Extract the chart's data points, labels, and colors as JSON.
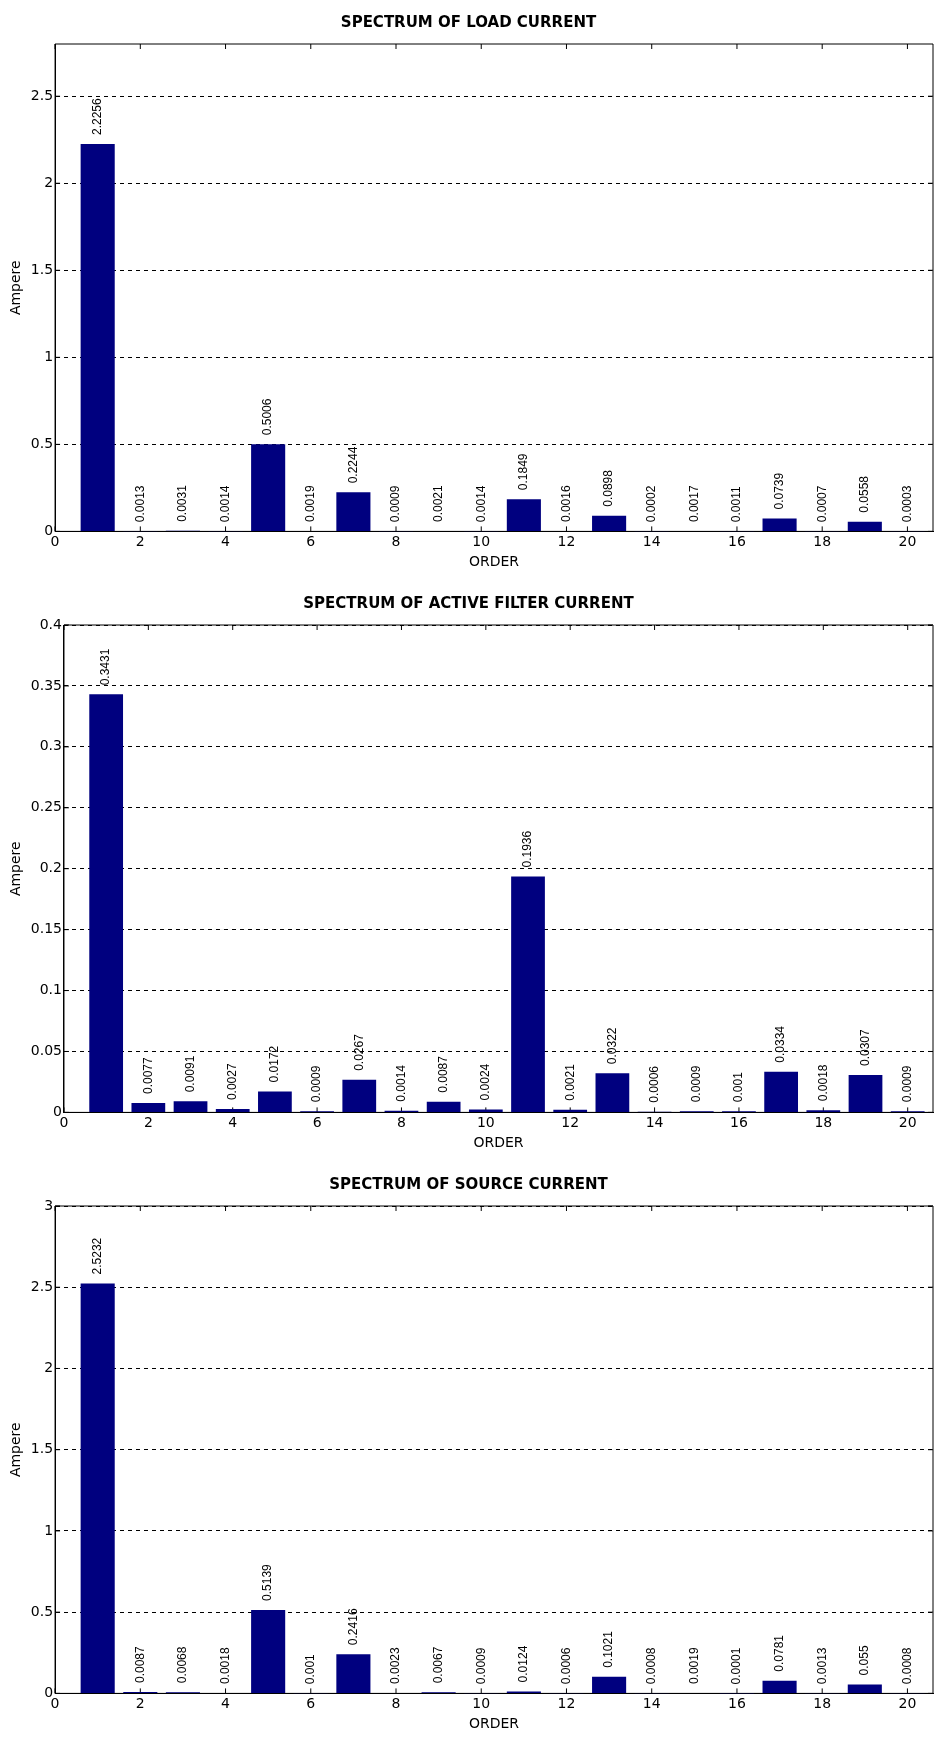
{
  "chart_data": [
    {
      "type": "bar",
      "title": "SPECTRUM OF LOAD CURRENT",
      "xlabel": "ORDER",
      "ylabel": "Ampere",
      "x": [
        1,
        2,
        3,
        4,
        5,
        6,
        7,
        8,
        9,
        10,
        11,
        12,
        13,
        14,
        15,
        16,
        17,
        18,
        19,
        20
      ],
      "color": "#00007f",
      "values": [
        2.2256,
        0.0013,
        0.0031,
        0.0014,
        0.5006,
        0.0019,
        0.2244,
        0.0009,
        0.0021,
        0.0014,
        0.1849,
        0.0016,
        0.0898,
        0.0002,
        0.0017,
        0.0011,
        0.0739,
        0.0007,
        0.0558,
        0.0003
      ],
      "xlim": [
        0,
        20.6
      ],
      "xticks": [
        0,
        2,
        4,
        6,
        8,
        10,
        12,
        14,
        16,
        18,
        20
      ],
      "ylim": [
        0,
        2.8
      ],
      "yticks": [
        0,
        0.5,
        1,
        1.5,
        2,
        2.5
      ],
      "grid": "y",
      "data_labels": true
    },
    {
      "type": "bar",
      "title": "SPECTRUM OF ACTIVE FILTER CURRENT",
      "xlabel": "ORDER",
      "ylabel": "Ampere",
      "x": [
        1,
        2,
        3,
        4,
        5,
        6,
        7,
        8,
        9,
        10,
        11,
        12,
        13,
        14,
        15,
        16,
        17,
        18,
        19,
        20
      ],
      "color": "#00007f",
      "values": [
        0.3431,
        0.0077,
        0.0091,
        0.0027,
        0.0172,
        0.0009,
        0.0267,
        0.0014,
        0.0087,
        0.0024,
        0.1936,
        0.0021,
        0.0322,
        0.0006,
        0.0009,
        0.001,
        0.0334,
        0.0018,
        0.0307,
        0.0009
      ],
      "xlim": [
        0,
        20.6
      ],
      "xticks": [
        0,
        2,
        4,
        6,
        8,
        10,
        12,
        14,
        16,
        18,
        20
      ],
      "ylim": [
        0,
        0.4
      ],
      "yticks": [
        0,
        0.05,
        0.1,
        0.15,
        0.2,
        0.25,
        0.3,
        0.35,
        0.4
      ],
      "grid": "y",
      "data_labels": true
    },
    {
      "type": "bar",
      "title": "SPECTRUM OF SOURCE CURRENT",
      "xlabel": "ORDER",
      "ylabel": "Ampere",
      "x": [
        1,
        2,
        3,
        4,
        5,
        6,
        7,
        8,
        9,
        10,
        11,
        12,
        13,
        14,
        15,
        16,
        17,
        18,
        19,
        20
      ],
      "color": "#00007f",
      "values": [
        2.5232,
        0.0087,
        0.0068,
        0.0018,
        0.5139,
        0.001,
        0.2416,
        0.0023,
        0.0067,
        0.0009,
        0.0124,
        0.0006,
        0.1021,
        0.0008,
        0.0019,
        0.0001,
        0.0781,
        0.0013,
        0.055,
        0.0008
      ],
      "xlim": [
        0,
        20.6
      ],
      "xticks": [
        0,
        2,
        4,
        6,
        8,
        10,
        12,
        14,
        16,
        18,
        20
      ],
      "ylim": [
        0,
        3
      ],
      "yticks": [
        0,
        0.5,
        1,
        1.5,
        2,
        2.5,
        3
      ],
      "grid": "y",
      "data_labels": true
    }
  ]
}
